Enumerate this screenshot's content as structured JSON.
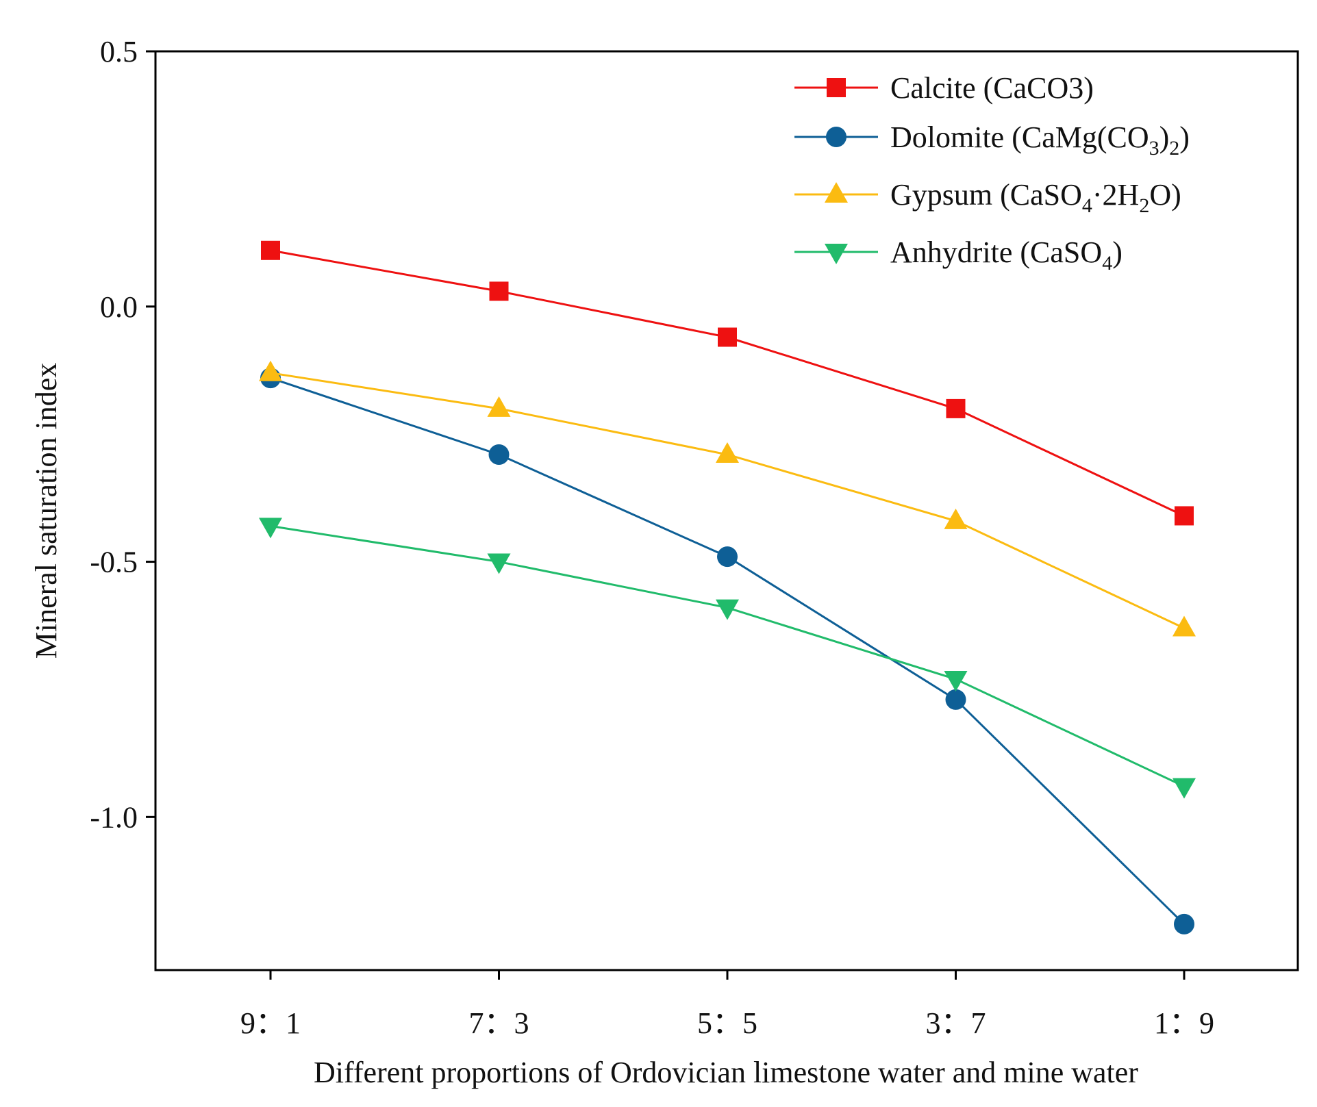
{
  "chart_data": {
    "type": "line",
    "title": "",
    "xlabel": "Different proportions of Ordovician limestone water and mine water",
    "ylabel": "Mineral saturation index",
    "categories": [
      "9：1",
      "7：3",
      "5：5",
      "3：7",
      "1：9"
    ],
    "ylim": [
      -1.3,
      0.5
    ],
    "yticks": [
      0.5,
      0.0,
      -0.5,
      -1.0
    ],
    "ytick_labels": [
      "0.5",
      "0.0",
      "-0.5",
      "-1.0"
    ],
    "grid": false,
    "legend_position": "top-right",
    "series": [
      {
        "name": "Calcite (CaCO3)",
        "legend": [
          [
            "Calcite (CaCO3)",
            ""
          ]
        ],
        "color": "#ee1111",
        "marker": "square",
        "values": [
          0.11,
          0.03,
          -0.06,
          -0.2,
          -0.41
        ]
      },
      {
        "name": "Dolomite (CaMg(CO3)2)",
        "legend": [
          [
            "Dolomite (CaMg(CO",
            ""
          ],
          [
            "3",
            "sub"
          ],
          [
            ")",
            ""
          ],
          [
            "2",
            "sub"
          ],
          [
            ")",
            ""
          ]
        ],
        "color": "#0e5f96",
        "marker": "circle",
        "values": [
          -0.14,
          -0.29,
          -0.49,
          -0.77,
          -1.21
        ]
      },
      {
        "name": "Gypsum (CaSO4·2H2O)",
        "legend": [
          [
            "Gypsum (CaSO",
            ""
          ],
          [
            "4",
            "sub"
          ],
          [
            "·2H",
            ""
          ],
          [
            "2",
            "sub"
          ],
          [
            "O)",
            ""
          ]
        ],
        "color": "#fbbb11",
        "marker": "triangle-up",
        "values": [
          -0.13,
          -0.2,
          -0.29,
          -0.42,
          -0.63
        ]
      },
      {
        "name": "Anhydrite (CaSO4)",
        "legend": [
          [
            "Anhydrite (CaSO",
            ""
          ],
          [
            "4",
            "sub"
          ],
          [
            ")",
            ""
          ]
        ],
        "color": "#21bb6b",
        "marker": "triangle-down",
        "values": [
          -0.43,
          -0.5,
          -0.59,
          -0.73,
          -0.94
        ]
      }
    ]
  }
}
